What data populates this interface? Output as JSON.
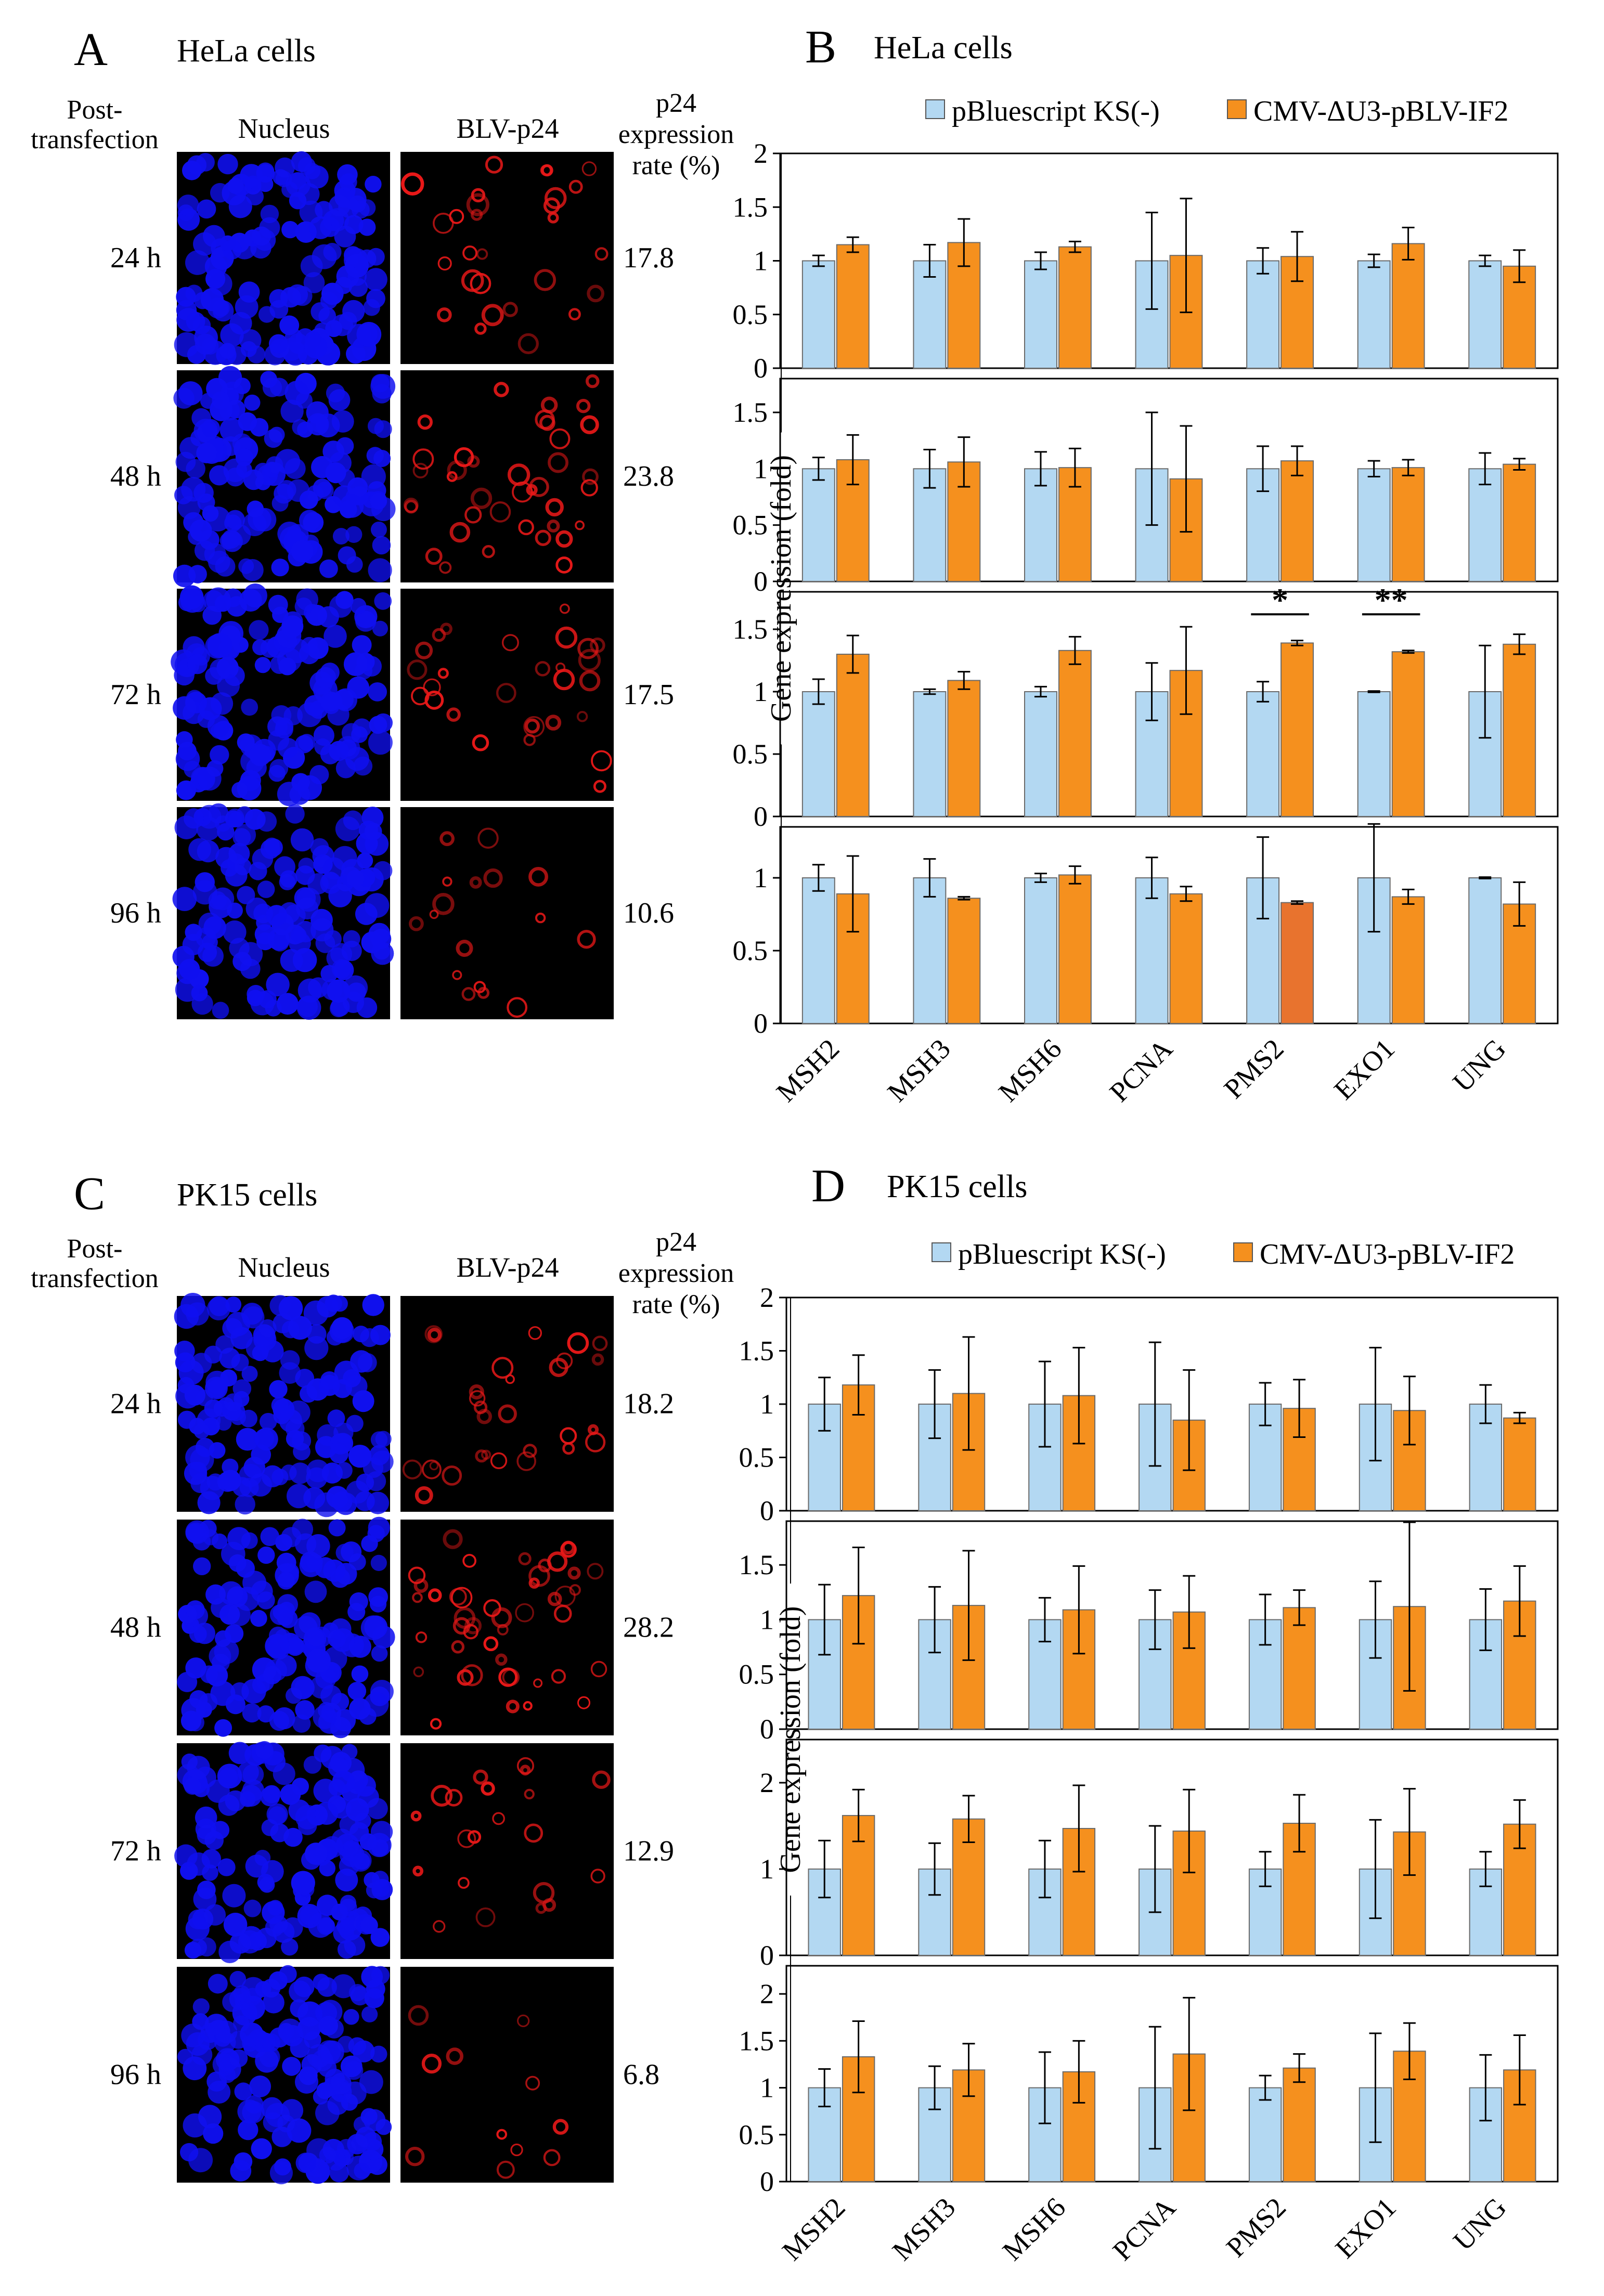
{
  "colors": {
    "control": "#b3d8f2",
    "treatment": "#f5901e",
    "treatment_highlight": "#e8732e",
    "nucleus_stain": "#1010f0",
    "p24_stain": "#e81818",
    "micrograph_bg": "#000000",
    "axis": "#000000"
  },
  "imaging_panels": [
    {
      "letter": "A",
      "title": "HeLa cells",
      "row_header_line1": "Post-",
      "row_header_line2": "transfection",
      "col_nucleus": "Nucleus",
      "col_p24": "BLV-p24",
      "rate_header_line1": "p24",
      "rate_header_line2": "expression",
      "rate_header_line3": "rate (%)",
      "rows": [
        {
          "time": "24 h",
          "rate": "17.8"
        },
        {
          "time": "48 h",
          "rate": "23.8"
        },
        {
          "time": "72 h",
          "rate": "17.5"
        },
        {
          "time": "96 h",
          "rate": "10.6"
        }
      ]
    },
    {
      "letter": "C",
      "title": "PK15 cells",
      "row_header_line1": "Post-",
      "row_header_line2": "transfection",
      "col_nucleus": "Nucleus",
      "col_p24": "BLV-p24",
      "rate_header_line1": "p24",
      "rate_header_line2": "expression",
      "rate_header_line3": "rate (%)",
      "rows": [
        {
          "time": "24 h",
          "rate": "18.2"
        },
        {
          "time": "48 h",
          "rate": "28.2"
        },
        {
          "time": "72 h",
          "rate": "12.9"
        },
        {
          "time": "96 h",
          "rate": "6.8"
        }
      ]
    }
  ],
  "chart_data": [
    {
      "type": "bar",
      "panel": "B",
      "title": "HeLa cells",
      "ylabel": "Gene expression (fold)",
      "legend": [
        "pBluescript KS(-)",
        "CMV-ΔU3-pBLV-IF2"
      ],
      "legend_placement": "top",
      "categories": [
        "MSH2",
        "MSH3",
        "MSH6",
        "PCNA",
        "PMS2",
        "EXO1",
        "UNG"
      ],
      "subplots": [
        {
          "ylim": [
            0,
            2
          ],
          "yticks": [
            0,
            0.5,
            1,
            1.5,
            2
          ],
          "series": [
            {
              "name": "pBluescript KS(-)",
              "values": [
                1,
                1,
                1,
                1,
                1,
                1,
                1
              ],
              "errors": [
                0.05,
                0.15,
                0.08,
                0.45,
                0.12,
                0.06,
                0.05
              ]
            },
            {
              "name": "CMV-ΔU3-pBLV-IF2",
              "values": [
                1.15,
                1.17,
                1.13,
                1.05,
                1.04,
                1.16,
                0.95
              ],
              "errors": [
                0.07,
                0.22,
                0.05,
                0.53,
                0.23,
                0.15,
                0.15
              ]
            }
          ]
        },
        {
          "ylim": [
            0,
            1.8
          ],
          "yticks": [
            0,
            0.5,
            1,
            1.5
          ],
          "series": [
            {
              "name": "pBluescript KS(-)",
              "values": [
                1,
                1,
                1,
                1,
                1,
                1,
                1
              ],
              "errors": [
                0.1,
                0.17,
                0.15,
                0.5,
                0.2,
                0.07,
                0.14
              ]
            },
            {
              "name": "CMV-ΔU3-pBLV-IF2",
              "values": [
                1.08,
                1.06,
                1.01,
                0.91,
                1.07,
                1.01,
                1.04
              ],
              "errors": [
                0.22,
                0.22,
                0.17,
                0.47,
                0.13,
                0.07,
                0.05
              ]
            }
          ]
        },
        {
          "ylim": [
            0,
            1.8
          ],
          "yticks": [
            0,
            0.5,
            1,
            1.5
          ],
          "significance": [
            {
              "category": "PMS2",
              "label": "*"
            },
            {
              "category": "EXO1",
              "label": "**"
            }
          ],
          "series": [
            {
              "name": "pBluescript KS(-)",
              "values": [
                1,
                1,
                1,
                1,
                1,
                1,
                1
              ],
              "errors": [
                0.1,
                0.02,
                0.04,
                0.23,
                0.08,
                0.005,
                0.37
              ]
            },
            {
              "name": "CMV-ΔU3-pBLV-IF2",
              "values": [
                1.3,
                1.09,
                1.33,
                1.17,
                1.39,
                1.32,
                1.38
              ],
              "errors": [
                0.15,
                0.07,
                0.11,
                0.35,
                0.02,
                0.01,
                0.08
              ]
            }
          ]
        },
        {
          "ylim": [
            0,
            1.35
          ],
          "yticks": [
            0,
            0.5,
            1
          ],
          "series": [
            {
              "name": "pBluescript KS(-)",
              "values": [
                1,
                1,
                1,
                1,
                1,
                1,
                1
              ],
              "errors": [
                0.09,
                0.13,
                0.03,
                0.14,
                0.28,
                0.37,
                0.005
              ]
            },
            {
              "name": "CMV-ΔU3-pBLV-IF2",
              "values": [
                0.89,
                0.86,
                1.02,
                0.89,
                0.83,
                0.87,
                0.82
              ],
              "errors": [
                0.26,
                0.01,
                0.06,
                0.05,
                0.01,
                0.05,
                0.15
              ]
            }
          ]
        }
      ]
    },
    {
      "type": "bar",
      "panel": "D",
      "title": "PK15 cells",
      "ylabel": "Gene expression (fold)",
      "legend": [
        "pBluescript KS(-)",
        "CMV-ΔU3-pBLV-IF2"
      ],
      "legend_placement": "top",
      "categories": [
        "MSH2",
        "MSH3",
        "MSH6",
        "PCNA",
        "PMS2",
        "EXO1",
        "UNG"
      ],
      "subplots": [
        {
          "ylim": [
            0,
            2
          ],
          "yticks": [
            0,
            0.5,
            1,
            1.5,
            2
          ],
          "series": [
            {
              "name": "pBluescript KS(-)",
              "values": [
                1,
                1,
                1,
                1,
                1,
                1,
                1
              ],
              "errors": [
                0.25,
                0.32,
                0.4,
                0.58,
                0.2,
                0.53,
                0.18
              ]
            },
            {
              "name": "CMV-ΔU3-pBLV-IF2",
              "values": [
                1.18,
                1.1,
                1.08,
                0.85,
                0.96,
                0.94,
                0.87
              ],
              "errors": [
                0.28,
                0.53,
                0.45,
                0.47,
                0.27,
                0.32,
                0.05
              ]
            }
          ]
        },
        {
          "ylim": [
            0,
            1.9
          ],
          "yticks": [
            0,
            0.5,
            1,
            1.5
          ],
          "series": [
            {
              "name": "pBluescript KS(-)",
              "values": [
                1,
                1,
                1,
                1,
                1,
                1,
                1
              ],
              "errors": [
                0.32,
                0.3,
                0.2,
                0.27,
                0.23,
                0.35,
                0.28
              ]
            },
            {
              "name": "CMV-ΔU3-pBLV-IF2",
              "values": [
                1.22,
                1.13,
                1.09,
                1.07,
                1.11,
                1.12,
                1.17
              ],
              "errors": [
                0.44,
                0.5,
                0.4,
                0.33,
                0.16,
                0.77,
                0.32
              ]
            }
          ]
        },
        {
          "ylim": [
            0,
            2.5
          ],
          "yticks": [
            0,
            1,
            2
          ],
          "series": [
            {
              "name": "pBluescript KS(-)",
              "values": [
                1,
                1,
                1,
                1,
                1,
                1,
                1
              ],
              "errors": [
                0.33,
                0.3,
                0.33,
                0.5,
                0.2,
                0.57,
                0.2
              ]
            },
            {
              "name": "CMV-ΔU3-pBLV-IF2",
              "values": [
                1.62,
                1.58,
                1.47,
                1.44,
                1.53,
                1.43,
                1.52
              ],
              "errors": [
                0.3,
                0.27,
                0.5,
                0.48,
                0.33,
                0.5,
                0.28
              ]
            }
          ]
        },
        {
          "ylim": [
            0,
            2.3
          ],
          "yticks": [
            0,
            0.5,
            1,
            1.5,
            2
          ],
          "series": [
            {
              "name": "pBluescript KS(-)",
              "values": [
                1,
                1,
                1,
                1,
                1,
                1,
                1
              ],
              "errors": [
                0.2,
                0.23,
                0.38,
                0.65,
                0.13,
                0.58,
                0.35
              ]
            },
            {
              "name": "CMV-ΔU3-pBLV-IF2",
              "values": [
                1.33,
                1.19,
                1.17,
                1.36,
                1.21,
                1.39,
                1.19
              ],
              "errors": [
                0.38,
                0.28,
                0.33,
                0.6,
                0.15,
                0.3,
                0.37
              ]
            }
          ]
        }
      ]
    }
  ]
}
